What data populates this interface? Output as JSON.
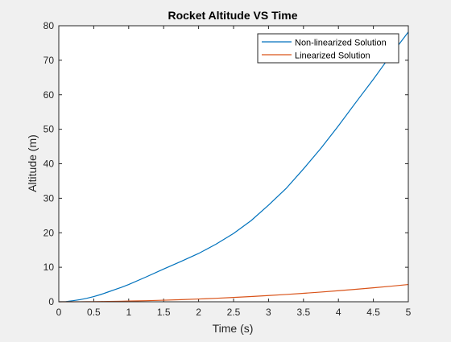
{
  "chart_data": {
    "type": "line",
    "title": "Rocket Altitude VS Time",
    "xlabel": "Time (s)",
    "ylabel": "Altitude (m)",
    "xlim": [
      0,
      5
    ],
    "ylim": [
      0,
      80
    ],
    "grid": false,
    "legend_position": "top-right",
    "x_ticks": [
      "0",
      "0.5",
      "1",
      "1.5",
      "2",
      "2.5",
      "3",
      "3.5",
      "4",
      "4.5",
      "5"
    ],
    "y_ticks": [
      "0",
      "10",
      "20",
      "30",
      "40",
      "50",
      "60",
      "70",
      "80"
    ],
    "x": [
      0,
      0.1,
      0.2,
      0.3,
      0.4,
      0.5,
      0.6,
      0.7,
      0.8,
      0.9,
      1.0,
      1.25,
      1.5,
      1.75,
      2.0,
      2.25,
      2.5,
      2.75,
      3.0,
      3.25,
      3.5,
      3.75,
      4.0,
      4.25,
      4.5,
      4.75,
      5.0
    ],
    "series": [
      {
        "name": "Non-linearized Solution",
        "color": "#0072BD",
        "values": [
          0,
          0.05,
          0.3,
          0.6,
          1.0,
          1.5,
          2.1,
          2.8,
          3.5,
          4.2,
          5.0,
          7.2,
          9.5,
          11.7,
          14.0,
          16.7,
          19.8,
          23.5,
          28.0,
          32.8,
          38.5,
          44.5,
          51.0,
          57.8,
          64.5,
          71.5,
          78.2
        ]
      },
      {
        "name": "Linearized Solution",
        "color": "#D95319",
        "values": [
          0,
          0.002,
          0.008,
          0.018,
          0.032,
          0.05,
          0.072,
          0.098,
          0.128,
          0.162,
          0.2,
          0.31,
          0.45,
          0.61,
          0.8,
          1.01,
          1.25,
          1.51,
          1.8,
          2.11,
          2.45,
          2.81,
          3.2,
          3.61,
          4.05,
          4.51,
          5.0
        ]
      }
    ]
  }
}
